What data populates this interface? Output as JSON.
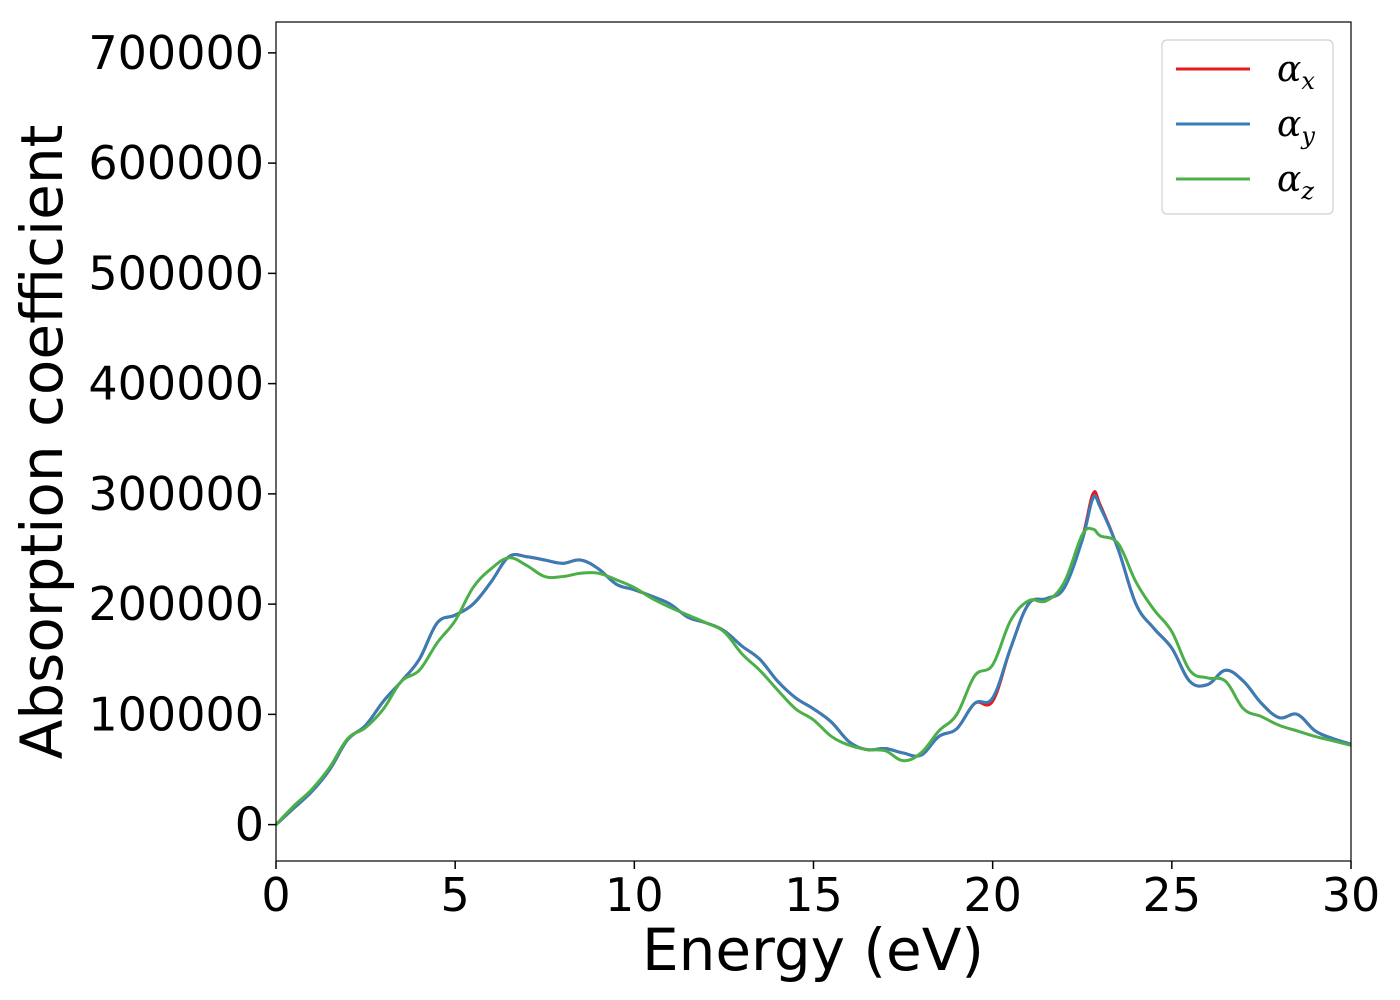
{
  "chart_data": {
    "type": "line",
    "xlabel": "Energy (eV)",
    "ylabel": "Absorption coefficient",
    "xlim": [
      0,
      30
    ],
    "ylim": [
      -33000,
      728000
    ],
    "x_ticks": [
      0,
      5,
      10,
      15,
      20,
      25,
      30
    ],
    "y_ticks": [
      0,
      100000,
      200000,
      300000,
      400000,
      500000,
      600000,
      700000
    ],
    "grid": false,
    "legend_position": "top-right",
    "x": [
      0,
      0.5,
      1,
      1.5,
      2,
      2.5,
      3,
      3.5,
      4,
      4.5,
      5,
      5.5,
      6,
      6.5,
      7,
      7.5,
      8,
      8.5,
      9,
      9.5,
      10,
      10.5,
      11,
      11.5,
      12,
      12.5,
      13,
      13.5,
      14,
      14.5,
      15,
      15.5,
      16,
      16.5,
      17,
      17.5,
      18,
      18.5,
      19,
      19.5,
      20,
      20.5,
      21,
      21.5,
      22,
      22.5,
      22.8,
      23,
      23.5,
      24,
      24.5,
      25,
      25.5,
      26,
      26.5,
      27,
      27.5,
      28,
      28.5,
      29,
      29.5,
      30
    ],
    "series": [
      {
        "name": "α",
        "subscript": "x",
        "color": "#e41a1c",
        "values": [
          0,
          15000,
          30000,
          50000,
          77000,
          90000,
          112000,
          130000,
          150000,
          183000,
          190000,
          200000,
          220000,
          243000,
          243000,
          240000,
          237000,
          240000,
          232000,
          218000,
          213000,
          207000,
          200000,
          188000,
          183000,
          176000,
          162000,
          150000,
          130000,
          115000,
          105000,
          93000,
          75000,
          68000,
          69000,
          65000,
          63000,
          80000,
          87000,
          110000,
          112000,
          160000,
          200000,
          205000,
          215000,
          260000,
          300000,
          290000,
          250000,
          200000,
          178000,
          160000,
          130000,
          127000,
          140000,
          130000,
          110000,
          97000,
          100000,
          85000,
          78000,
          73000
        ]
      },
      {
        "name": "α",
        "subscript": "y",
        "color": "#377eb8",
        "values": [
          0,
          15000,
          30000,
          50000,
          77000,
          90000,
          112000,
          130000,
          150000,
          183000,
          190000,
          200000,
          220000,
          243000,
          243000,
          240000,
          237000,
          240000,
          232000,
          218000,
          213000,
          207000,
          200000,
          188000,
          183000,
          176000,
          162000,
          150000,
          130000,
          115000,
          105000,
          93000,
          75000,
          68000,
          69000,
          65000,
          63000,
          80000,
          87000,
          110000,
          115000,
          160000,
          200000,
          205000,
          215000,
          258000,
          296000,
          288000,
          250000,
          200000,
          178000,
          160000,
          130000,
          127000,
          140000,
          130000,
          110000,
          97000,
          100000,
          85000,
          78000,
          73000
        ]
      },
      {
        "name": "α",
        "subscript": "z",
        "color": "#4daf4a",
        "values": [
          0,
          17000,
          32000,
          52000,
          78000,
          88000,
          105000,
          130000,
          140000,
          165000,
          185000,
          215000,
          232000,
          242000,
          235000,
          225000,
          225000,
          228000,
          228000,
          222000,
          215000,
          205000,
          197000,
          190000,
          183000,
          175000,
          155000,
          140000,
          122000,
          105000,
          95000,
          80000,
          72000,
          68000,
          67000,
          58000,
          65000,
          85000,
          100000,
          135000,
          145000,
          185000,
          203000,
          203000,
          220000,
          263000,
          268000,
          262000,
          255000,
          220000,
          195000,
          175000,
          140000,
          133000,
          130000,
          105000,
          98000,
          90000,
          85000,
          80000,
          76000,
          72000
        ]
      }
    ]
  }
}
